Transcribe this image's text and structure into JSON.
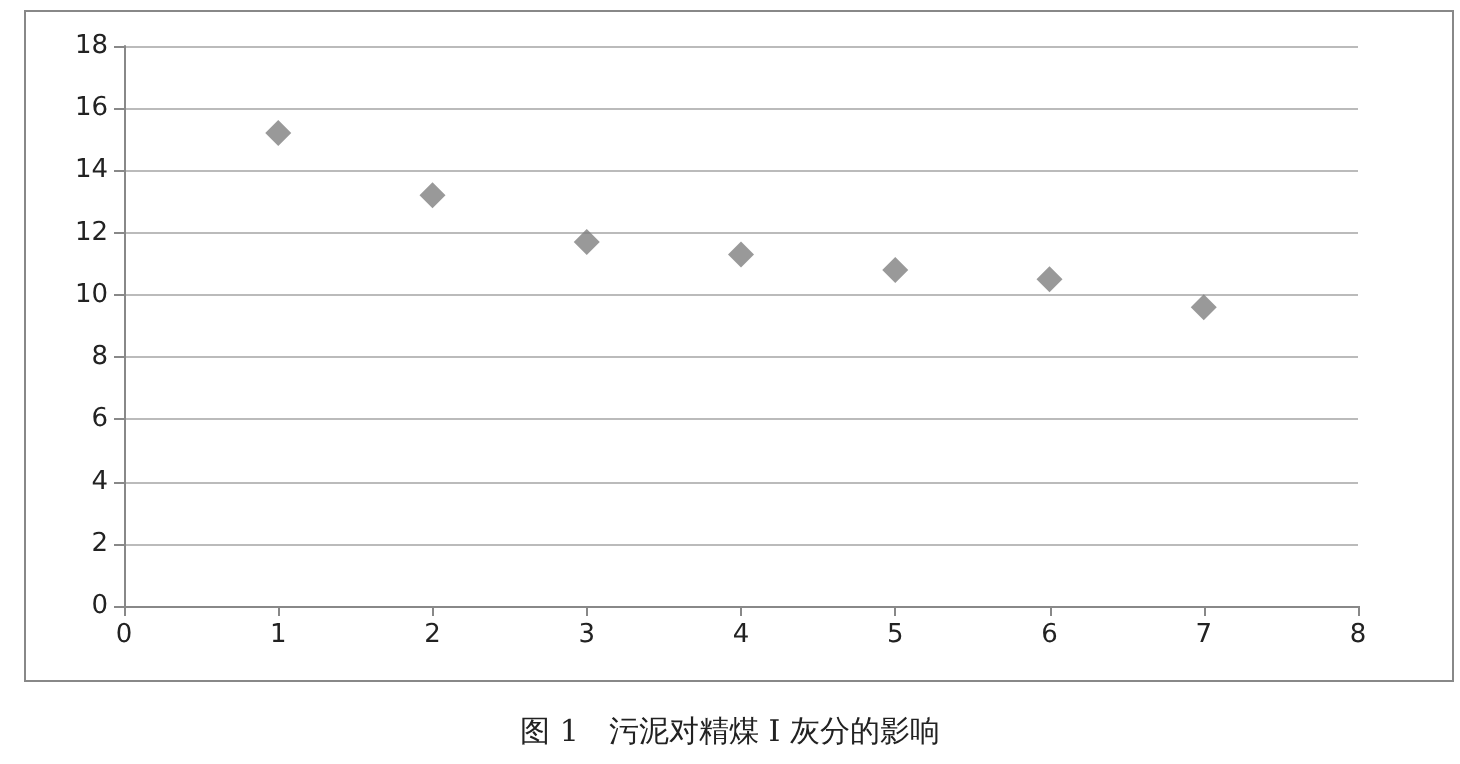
{
  "chart_data": {
    "type": "scatter",
    "title": "图 1　污泥对精煤 I 灰分的影响",
    "x": [
      1,
      2,
      3,
      4,
      5,
      6,
      7
    ],
    "series": [
      {
        "color": "#7f7f7f",
        "values": [
          15.2,
          13.2,
          11.7,
          11.3,
          10.8,
          10.5,
          9.6
        ]
      }
    ],
    "xlim": [
      0,
      8
    ],
    "xticks": [
      0,
      1,
      2,
      3,
      4,
      5,
      6,
      7,
      8
    ],
    "ylim": [
      0,
      18
    ],
    "yticks": [
      0,
      2,
      4,
      6,
      8,
      10,
      12,
      14,
      16,
      18
    ],
    "grid": "y",
    "marker": "diamond"
  }
}
